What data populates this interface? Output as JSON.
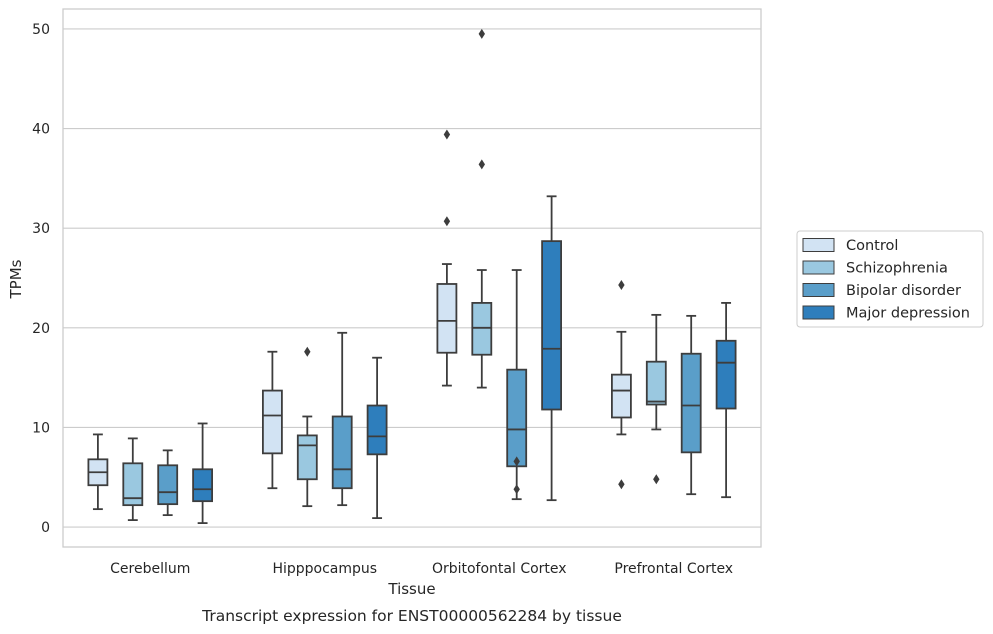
{
  "chart_data": {
    "type": "box",
    "xlabel": "Tissue",
    "ylabel": "TPMs",
    "caption": "Transcript expression for ENST00000562284 by tissue",
    "ylim": [
      -2,
      52
    ],
    "yticks": [
      0,
      10,
      20,
      30,
      40,
      50
    ],
    "grid": "horizontal",
    "legend_position": "right",
    "categories": [
      "Cerebellum",
      "Hipppocampus",
      "Orbitofontal Cortex",
      "Prefrontal Cortex"
    ],
    "series": [
      {
        "name": "Control",
        "color": "#d2e3f3",
        "boxes": [
          {
            "whislo": 1.8,
            "q1": 4.2,
            "med": 5.5,
            "q3": 6.8,
            "whishi": 9.3,
            "fliers": []
          },
          {
            "whislo": 3.9,
            "q1": 7.4,
            "med": 11.2,
            "q3": 13.7,
            "whishi": 17.6,
            "fliers": []
          },
          {
            "whislo": 14.2,
            "q1": 17.5,
            "med": 20.7,
            "q3": 24.4,
            "whishi": 26.4,
            "fliers": [
              30.7,
              39.4
            ]
          },
          {
            "whislo": 9.3,
            "q1": 11.0,
            "med": 13.7,
            "q3": 15.3,
            "whishi": 19.6,
            "fliers": [
              4.3,
              24.3
            ]
          }
        ]
      },
      {
        "name": "Schizophrenia",
        "color": "#9ac8e0",
        "boxes": [
          {
            "whislo": 0.7,
            "q1": 2.2,
            "med": 2.9,
            "q3": 6.4,
            "whishi": 8.9,
            "fliers": []
          },
          {
            "whislo": 2.1,
            "q1": 4.8,
            "med": 8.2,
            "q3": 9.2,
            "whishi": 11.1,
            "fliers": [
              17.6
            ]
          },
          {
            "whislo": 14.0,
            "q1": 17.3,
            "med": 20.0,
            "q3": 22.5,
            "whishi": 25.8,
            "fliers": [
              36.4,
              49.5
            ]
          },
          {
            "whislo": 9.8,
            "q1": 12.3,
            "med": 12.6,
            "q3": 16.6,
            "whishi": 21.3,
            "fliers": [
              4.8
            ]
          }
        ]
      },
      {
        "name": "Bipolar disorder",
        "color": "#5a9ec9",
        "boxes": [
          {
            "whislo": 1.2,
            "q1": 2.3,
            "med": 3.5,
            "q3": 6.2,
            "whishi": 7.7,
            "fliers": []
          },
          {
            "whislo": 2.2,
            "q1": 3.9,
            "med": 5.8,
            "q3": 11.1,
            "whishi": 19.5,
            "fliers": []
          },
          {
            "whislo": 2.8,
            "q1": 6.1,
            "med": 9.8,
            "q3": 15.8,
            "whishi": 25.8,
            "fliers": [
              3.8,
              6.6
            ]
          },
          {
            "whislo": 3.3,
            "q1": 7.5,
            "med": 12.2,
            "q3": 17.4,
            "whishi": 21.2,
            "fliers": []
          }
        ]
      },
      {
        "name": "Major depression",
        "color": "#2e7ebc",
        "boxes": [
          {
            "whislo": 0.4,
            "q1": 2.6,
            "med": 3.8,
            "q3": 5.8,
            "whishi": 10.4,
            "fliers": []
          },
          {
            "whislo": 0.9,
            "q1": 7.3,
            "med": 9.1,
            "q3": 12.2,
            "whishi": 17.0,
            "fliers": []
          },
          {
            "whislo": 2.7,
            "q1": 11.8,
            "med": 17.9,
            "q3": 28.7,
            "whishi": 33.2,
            "fliers": []
          },
          {
            "whislo": 3.0,
            "q1": 11.9,
            "med": 16.5,
            "q3": 18.7,
            "whishi": 22.5,
            "fliers": []
          }
        ]
      }
    ]
  }
}
